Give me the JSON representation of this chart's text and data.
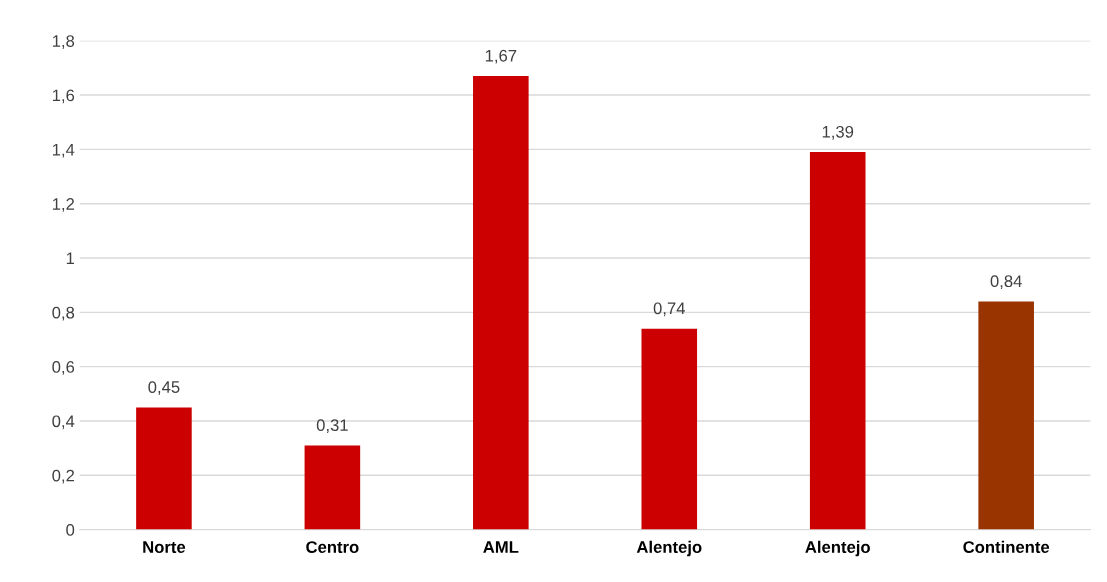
{
  "chart_data": {
    "type": "bar",
    "categories": [
      "Norte",
      "Centro",
      "AML",
      "Alentejo",
      "Alentejo",
      "Continente"
    ],
    "values": [
      0.45,
      0.31,
      1.67,
      0.74,
      1.39,
      0.84
    ],
    "colors": [
      "#cc0000",
      "#cc0000",
      "#cc0000",
      "#cc0000",
      "#cc0000",
      "#993300"
    ],
    "value_labels": [
      "0,45",
      "0,31",
      "1,67",
      "0,74",
      "1,39",
      "0,84"
    ],
    "ylim": [
      0,
      1.8
    ],
    "yticks": [
      0,
      {
        "value": 0.2,
        "label": "0,2"
      },
      {
        "value": 0.4,
        "label": "0,4"
      },
      {
        "value": 0.6,
        "label": "0,6"
      },
      {
        "value": 0.8,
        "label": "0,8"
      },
      1,
      {
        "value": 1.2,
        "label": "1,2"
      },
      {
        "value": 1.4,
        "label": "1,4"
      },
      {
        "value": 1.6,
        "label": "1,6"
      },
      {
        "value": 1.8,
        "label": "1,8"
      }
    ],
    "grid": "y",
    "legend": false
  }
}
